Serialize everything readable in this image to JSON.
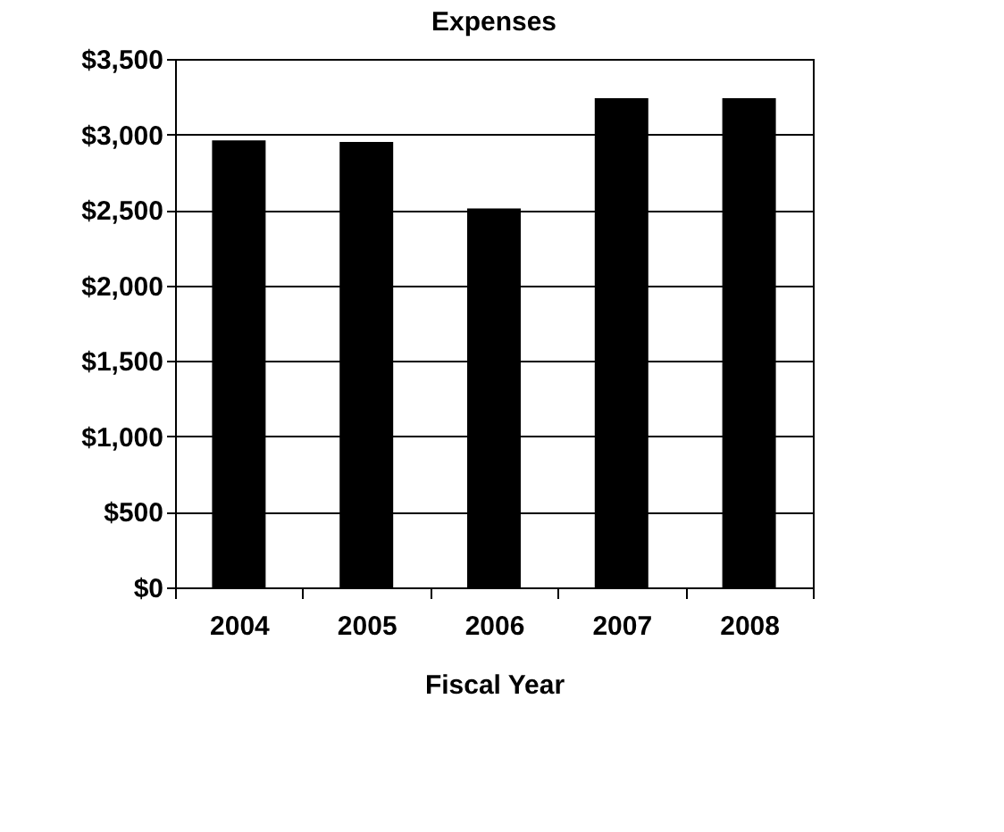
{
  "chart_data": {
    "type": "bar",
    "title": "Expenses",
    "xlabel": "Fiscal Year",
    "categories": [
      "2004",
      "2005",
      "2006",
      "2007",
      "2008"
    ],
    "values": [
      2960,
      2950,
      2510,
      3240,
      3240
    ],
    "color": "#000000",
    "ylim": [
      0,
      3500
    ],
    "yticks": [
      {
        "value": 0,
        "label": "$0"
      },
      {
        "value": 500,
        "label": "$500"
      },
      {
        "value": 1000,
        "label": "$1,000"
      },
      {
        "value": 1500,
        "label": "$1,500"
      },
      {
        "value": 2000,
        "label": "$2,000"
      },
      {
        "value": 2500,
        "label": "$2,500"
      },
      {
        "value": 3000,
        "label": "$3,000"
      },
      {
        "value": 3500,
        "label": "$3,500"
      }
    ],
    "grid": "y"
  }
}
